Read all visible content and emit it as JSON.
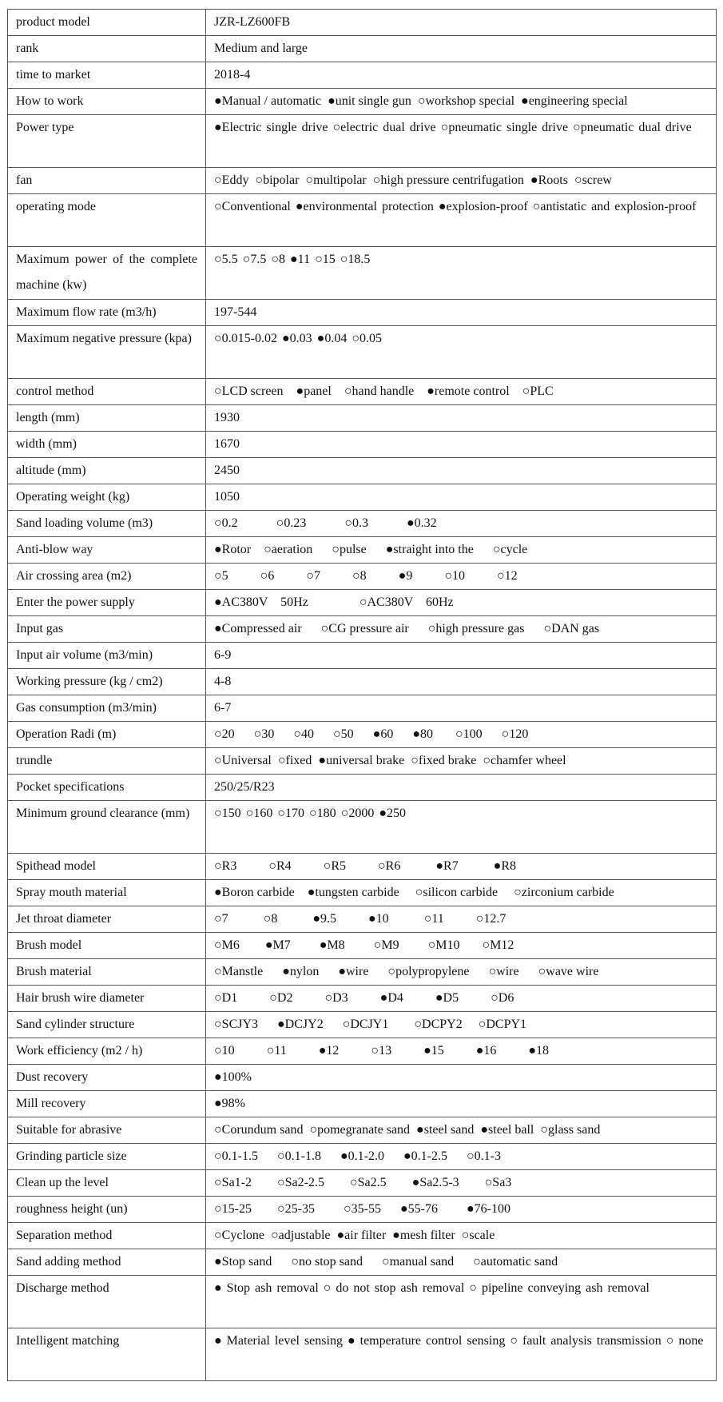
{
  "rows": [
    {
      "label": "product model",
      "value": "JZR-LZ600FB"
    },
    {
      "label": "rank",
      "value": "Medium and large"
    },
    {
      "label": "time to market",
      "value": "2018-4"
    },
    {
      "label": "How to work",
      "value": "●Manual / automatic  ●unit single gun  ○workshop special  ●engineering special"
    },
    {
      "label": "Power type",
      "value": "●Electric single drive            ○electric dual drive            ○pneumatic single drive ○pneumatic dual drive",
      "double": true
    },
    {
      "label": "fan",
      "value": "○Eddy  ○bipolar  ○multipolar  ○high pressure centrifugation  ●Roots  ○screw"
    },
    {
      "label": "operating mode",
      "value": "○Conventional        ●environmental protection        ●explosion-proof      ○antistatic and explosion-proof",
      "double": true
    },
    {
      "label": "Maximum power of the complete machine (kw)",
      "value": "○5.5          ○7.5          ○8          ●11          ○15          ○18.5",
      "double": true
    },
    {
      "label": "Maximum flow rate (m3/h)",
      "value": "197-544"
    },
    {
      "label": "Maximum negative pressure (kpa)",
      "value": "○0.015-0.02          ●0.03          ●0.04          ○0.05",
      "double": true
    },
    {
      "label": "control method",
      "value": "○LCD screen    ●panel    ○hand handle    ●remote control    ○PLC"
    },
    {
      "label": "length (mm)",
      "value": "1930"
    },
    {
      "label": "width (mm)",
      "value": "1670"
    },
    {
      "label": "altitude (mm)",
      "value": "2450"
    },
    {
      "label": "Operating weight (kg)",
      "value": "1050"
    },
    {
      "label": "Sand loading volume (m3)",
      "value": "○0.2            ○0.23            ○0.3            ●0.32"
    },
    {
      "label": "Anti-blow way",
      "value": "●Rotor    ○aeration      ○pulse      ●straight into the      ○cycle"
    },
    {
      "label": "Air crossing area (m2)",
      "value": "○5          ○6          ○7          ○8          ●9          ○10          ○12"
    },
    {
      "label": "Enter the power supply",
      "value": "●AC380V    50Hz                ○AC380V    60Hz"
    },
    {
      "label": "Input gas",
      "value": "●Compressed air      ○CG pressure air      ○high pressure gas      ○DAN gas"
    },
    {
      "label": "Input air volume (m3/min)",
      "value": "6-9"
    },
    {
      "label": "Working pressure (kg / cm2)",
      "value": "4-8"
    },
    {
      "label": "Gas consumption (m3/min)",
      "value": "6-7"
    },
    {
      "label": "Operation Radi (m)",
      "value": "○20      ○30      ○40      ○50      ●60      ●80       ○100      ○120"
    },
    {
      "label": "trundle",
      "value": "○Universal  ○fixed  ●universal brake  ○fixed brake  ○chamfer wheel"
    },
    {
      "label": "Pocket specifications",
      "value": "250/25/R23"
    },
    {
      "label": "Minimum ground clearance (mm)",
      "value": "○150        ○160        ○170        ○180        ○2000        ●250",
      "double": true
    },
    {
      "label": "Spithead model",
      "value": "○R3          ○R4          ○R5          ○R6           ●R7           ●R8"
    },
    {
      "label": "Spray mouth material",
      "value": "●Boron carbide    ●tungsten carbide     ○silicon carbide     ○zirconium carbide"
    },
    {
      "label": "Jet throat diameter",
      "value": "○7           ○8           ●9.5          ●10           ○11          ○12.7"
    },
    {
      "label": "Brush model",
      "value": "○M6        ●M7         ●M8         ○M9         ○M10       ○M12"
    },
    {
      "label": "Brush material",
      "value": "○Manstle      ●nylon      ●wire      ○polypropylene      ○wire      ○wave wire"
    },
    {
      "label": "Hair brush wire diameter",
      "value": "○D1          ○D2          ○D3          ●D4          ●D5          ○D6"
    },
    {
      "label": "Sand cylinder structure",
      "value": "○SCJY3      ●DCJY2      ○DCJY1        ○DCPY2     ○DCPY1"
    },
    {
      "label": "Work efficiency (m2 / h)",
      "value": "○10          ○11          ●12          ○13          ●15          ●16          ●18"
    },
    {
      "label": "Dust recovery",
      "value": "●100%"
    },
    {
      "label": "Mill recovery",
      "value": "●98%"
    },
    {
      "label": "Suitable for abrasive",
      "value": "○Corundum sand  ○pomegranate sand  ●steel sand  ●steel ball  ○glass sand"
    },
    {
      "label": "Grinding particle size",
      "value": "○0.1-1.5      ○0.1-1.8      ●0.1-2.0      ●0.1-2.5      ○0.1-3"
    },
    {
      "label": "Clean up the level",
      "value": "○Sa1-2        ○Sa2-2.5        ○Sa2.5        ●Sa2.5-3        ○Sa3"
    },
    {
      "label": "roughness height (un)",
      "value": "○15-25        ○25-35         ○35-55      ●55-76         ●76-100"
    },
    {
      "label": "Separation method",
      "value": "○Cyclone  ○adjustable  ●air filter  ●mesh filter  ○scale"
    },
    {
      "label": "Sand adding method",
      "value": "●Stop sand      ○no stop sand      ○manual sand      ○automatic sand"
    },
    {
      "label": "Discharge method",
      "value": "●   Stop ash removal  ○   do not stop ash removal  ○   pipeline conveying ash removal",
      "double": true
    },
    {
      "label": "Intelligent matching",
      "value": "●   Material level sensing  ●   temperature control sensing  ○   fault analysis transmission  ○ none",
      "double": true
    }
  ]
}
